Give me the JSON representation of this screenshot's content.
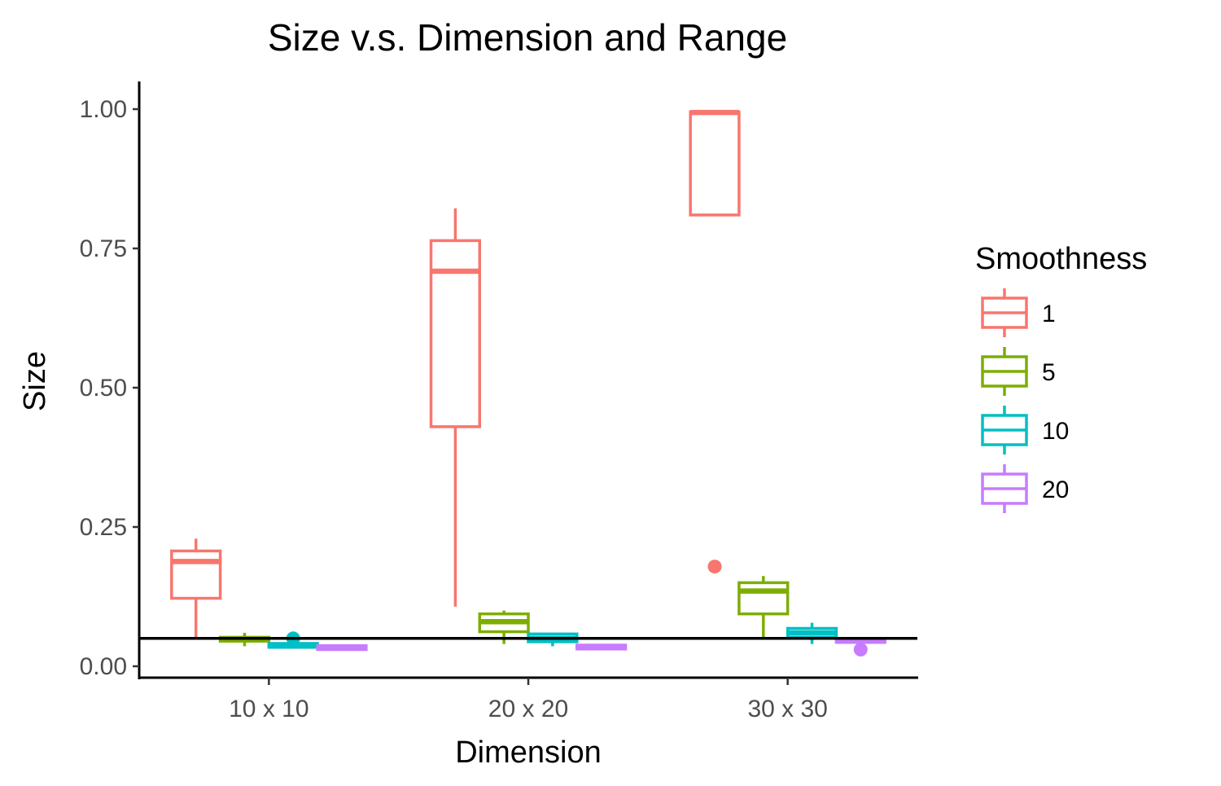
{
  "chart_data": {
    "type": "box",
    "title": "Size v.s. Dimension and Range",
    "xlabel": "Dimension",
    "ylabel": "Size",
    "categories": [
      "10 x 10",
      "20 x 20",
      "30 x 30"
    ],
    "ylim": [
      -0.02,
      1.045
    ],
    "yticks": [
      0.0,
      0.25,
      0.5,
      0.75,
      1.0
    ],
    "ytick_labels": [
      "0.00",
      "0.25",
      "0.50",
      "0.75",
      "1.00"
    ],
    "reference_line_y": 0.05,
    "grid": false,
    "legend": {
      "title": "Smoothness",
      "position": "right",
      "entries": [
        "1",
        "5",
        "10",
        "20"
      ]
    },
    "series": [
      {
        "name": "1",
        "color": "#F8766D",
        "boxes": [
          {
            "category": "10 x 10",
            "whisker_low": 0.05,
            "q1": 0.122,
            "median": 0.188,
            "q3": 0.207,
            "whisker_high": 0.229,
            "outliers": []
          },
          {
            "category": "20 x 20",
            "whisker_low": 0.107,
            "q1": 0.43,
            "median": 0.709,
            "q3": 0.764,
            "whisker_high": 0.822,
            "outliers": []
          },
          {
            "category": "30 x 30",
            "whisker_low": 0.81,
            "q1": 0.81,
            "median": 0.994,
            "q3": 0.995,
            "whisker_high": 0.996,
            "outliers": [
              0.179
            ]
          }
        ]
      },
      {
        "name": "5",
        "color": "#7CAE00",
        "boxes": [
          {
            "category": "10 x 10",
            "whisker_low": 0.036,
            "q1": 0.045,
            "median": 0.048,
            "q3": 0.052,
            "whisker_high": 0.06,
            "outliers": []
          },
          {
            "category": "20 x 20",
            "whisker_low": 0.04,
            "q1": 0.062,
            "median": 0.08,
            "q3": 0.094,
            "whisker_high": 0.1,
            "outliers": []
          },
          {
            "category": "30 x 30",
            "whisker_low": 0.048,
            "q1": 0.094,
            "median": 0.135,
            "q3": 0.15,
            "whisker_high": 0.162,
            "outliers": []
          }
        ]
      },
      {
        "name": "10",
        "color": "#00BFC4",
        "boxes": [
          {
            "category": "10 x 10",
            "whisker_low": 0.033,
            "q1": 0.034,
            "median": 0.037,
            "q3": 0.041,
            "whisker_high": 0.044,
            "outliers": [
              0.05
            ]
          },
          {
            "category": "20 x 20",
            "whisker_low": 0.036,
            "q1": 0.044,
            "median": 0.05,
            "q3": 0.058,
            "whisker_high": 0.06,
            "outliers": []
          },
          {
            "category": "30 x 30",
            "whisker_low": 0.04,
            "q1": 0.052,
            "median": 0.06,
            "q3": 0.068,
            "whisker_high": 0.078,
            "outliers": []
          }
        ]
      },
      {
        "name": "20",
        "color": "#C77CFF",
        "boxes": [
          {
            "category": "10 x 10",
            "whisker_low": 0.029,
            "q1": 0.03,
            "median": 0.033,
            "q3": 0.037,
            "whisker_high": 0.039,
            "outliers": []
          },
          {
            "category": "20 x 20",
            "whisker_low": 0.03,
            "q1": 0.031,
            "median": 0.034,
            "q3": 0.038,
            "whisker_high": 0.04,
            "outliers": []
          },
          {
            "category": "30 x 30",
            "whisker_low": 0.042,
            "q1": 0.043,
            "median": 0.045,
            "q3": 0.048,
            "whisker_high": 0.05,
            "outliers": [
              0.03
            ]
          }
        ]
      }
    ]
  }
}
